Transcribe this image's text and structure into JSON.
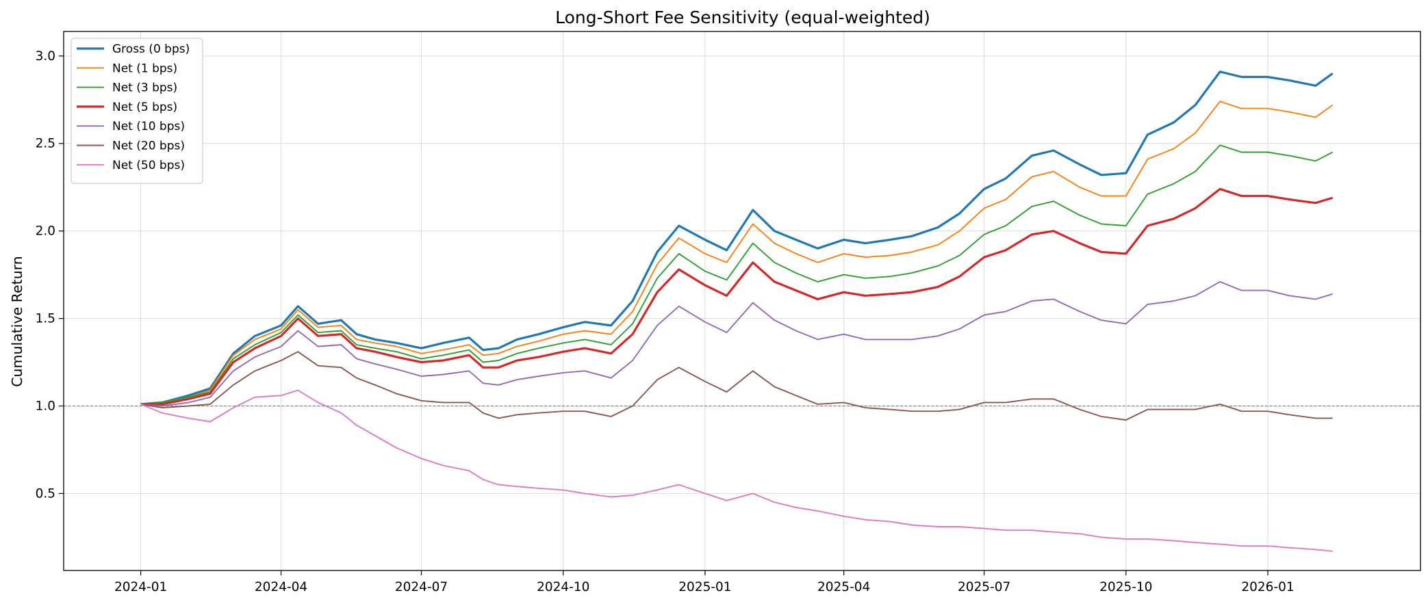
{
  "chart_data": {
    "type": "line",
    "title": "Long-Short Fee Sensitivity (equal-weighted)",
    "xlabel": "",
    "ylabel": "Cumulative Return",
    "xlim": [
      "2023-11-12",
      "2026-04-10"
    ],
    "ylim": [
      0.06,
      3.14
    ],
    "x_ticks": [
      "2024-01",
      "2024-04",
      "2024-07",
      "2024-10",
      "2025-01",
      "2025-04",
      "2025-07",
      "2025-10",
      "2026-01"
    ],
    "y_ticks": [
      0.5,
      1.0,
      1.5,
      2.0,
      2.5,
      3.0
    ],
    "grid": true,
    "reference_line": {
      "y": 1.0,
      "style": "dashed",
      "color": "#808080"
    },
    "legend": {
      "placement": "top-left"
    },
    "x": [
      "2024-01-01",
      "2024-01-15",
      "2024-02-01",
      "2024-02-15",
      "2024-03-01",
      "2024-03-15",
      "2024-04-01",
      "2024-04-12",
      "2024-04-25",
      "2024-05-10",
      "2024-05-20",
      "2024-06-01",
      "2024-06-15",
      "2024-07-01",
      "2024-07-15",
      "2024-08-01",
      "2024-08-10",
      "2024-08-20",
      "2024-09-01",
      "2024-09-15",
      "2024-10-01",
      "2024-10-15",
      "2024-11-01",
      "2024-11-15",
      "2024-12-01",
      "2024-12-15",
      "2025-01-01",
      "2025-01-15",
      "2025-02-01",
      "2025-02-15",
      "2025-03-01",
      "2025-03-15",
      "2025-04-01",
      "2025-04-15",
      "2025-05-01",
      "2025-05-15",
      "2025-06-01",
      "2025-06-15",
      "2025-07-01",
      "2025-07-15",
      "2025-08-01",
      "2025-08-15",
      "2025-09-01",
      "2025-09-15",
      "2025-10-01",
      "2025-10-15",
      "2025-11-01",
      "2025-11-15",
      "2025-12-01",
      "2025-12-15",
      "2026-01-01",
      "2026-01-15",
      "2026-02-01",
      "2026-02-12"
    ],
    "series": [
      {
        "name": "Gross (0 bps)",
        "color": "#1f77b4",
        "width": 3.2,
        "values": [
          1.01,
          1.02,
          1.06,
          1.1,
          1.3,
          1.4,
          1.46,
          1.57,
          1.47,
          1.49,
          1.41,
          1.38,
          1.36,
          1.33,
          1.36,
          1.39,
          1.32,
          1.33,
          1.38,
          1.41,
          1.45,
          1.48,
          1.46,
          1.6,
          1.88,
          2.03,
          1.95,
          1.89,
          2.12,
          2.0,
          1.95,
          1.9,
          1.95,
          1.93,
          1.95,
          1.97,
          2.02,
          2.1,
          2.24,
          2.3,
          2.43,
          2.46,
          2.38,
          2.32,
          2.33,
          2.55,
          2.62,
          2.72,
          2.91,
          2.88,
          2.88,
          2.86,
          2.83,
          2.9
        ]
      },
      {
        "name": "Net (1 bps)",
        "color": "#ff7f0e",
        "width": 1.9,
        "values": [
          1.01,
          1.02,
          1.05,
          1.09,
          1.29,
          1.38,
          1.44,
          1.55,
          1.45,
          1.46,
          1.38,
          1.36,
          1.34,
          1.3,
          1.32,
          1.35,
          1.29,
          1.3,
          1.34,
          1.37,
          1.41,
          1.43,
          1.41,
          1.54,
          1.81,
          1.96,
          1.87,
          1.82,
          2.04,
          1.93,
          1.87,
          1.82,
          1.87,
          1.85,
          1.86,
          1.88,
          1.92,
          2.0,
          2.13,
          2.18,
          2.31,
          2.34,
          2.25,
          2.2,
          2.2,
          2.41,
          2.47,
          2.56,
          2.74,
          2.7,
          2.7,
          2.68,
          2.65,
          2.72
        ]
      },
      {
        "name": "Net (3 bps)",
        "color": "#2ca02c",
        "width": 1.9,
        "values": [
          1.01,
          1.02,
          1.05,
          1.08,
          1.27,
          1.35,
          1.42,
          1.52,
          1.42,
          1.43,
          1.35,
          1.33,
          1.31,
          1.27,
          1.29,
          1.32,
          1.25,
          1.26,
          1.3,
          1.33,
          1.36,
          1.38,
          1.35,
          1.47,
          1.73,
          1.87,
          1.77,
          1.72,
          1.93,
          1.82,
          1.76,
          1.71,
          1.75,
          1.73,
          1.74,
          1.76,
          1.8,
          1.86,
          1.98,
          2.03,
          2.14,
          2.17,
          2.09,
          2.04,
          2.03,
          2.21,
          2.27,
          2.34,
          2.49,
          2.45,
          2.45,
          2.43,
          2.4,
          2.45
        ]
      },
      {
        "name": "Net (5 bps)",
        "color": "#d62728",
        "width": 3.2,
        "values": [
          1.01,
          1.01,
          1.04,
          1.07,
          1.25,
          1.33,
          1.4,
          1.5,
          1.4,
          1.41,
          1.33,
          1.31,
          1.28,
          1.25,
          1.26,
          1.29,
          1.22,
          1.22,
          1.26,
          1.28,
          1.31,
          1.33,
          1.3,
          1.41,
          1.65,
          1.78,
          1.69,
          1.63,
          1.82,
          1.71,
          1.66,
          1.61,
          1.65,
          1.63,
          1.64,
          1.65,
          1.68,
          1.74,
          1.85,
          1.89,
          1.98,
          2.0,
          1.93,
          1.88,
          1.87,
          2.03,
          2.07,
          2.13,
          2.24,
          2.2,
          2.2,
          2.18,
          2.16,
          2.19
        ]
      },
      {
        "name": "Net (10 bps)",
        "color": "#9467bd",
        "width": 1.9,
        "values": [
          1.01,
          1.0,
          1.02,
          1.05,
          1.2,
          1.28,
          1.34,
          1.43,
          1.34,
          1.35,
          1.27,
          1.24,
          1.21,
          1.17,
          1.18,
          1.2,
          1.13,
          1.12,
          1.15,
          1.17,
          1.19,
          1.2,
          1.16,
          1.26,
          1.46,
          1.57,
          1.48,
          1.42,
          1.59,
          1.49,
          1.43,
          1.38,
          1.41,
          1.38,
          1.38,
          1.38,
          1.4,
          1.44,
          1.52,
          1.54,
          1.6,
          1.61,
          1.54,
          1.49,
          1.47,
          1.58,
          1.6,
          1.63,
          1.71,
          1.66,
          1.66,
          1.63,
          1.61,
          1.64
        ]
      },
      {
        "name": "Net (20 bps)",
        "color": "#8c564b",
        "width": 1.9,
        "values": [
          1.01,
          0.99,
          1.0,
          1.01,
          1.12,
          1.2,
          1.26,
          1.31,
          1.23,
          1.22,
          1.16,
          1.12,
          1.07,
          1.03,
          1.02,
          1.02,
          0.96,
          0.93,
          0.95,
          0.96,
          0.97,
          0.97,
          0.94,
          1.0,
          1.15,
          1.22,
          1.14,
          1.08,
          1.2,
          1.11,
          1.06,
          1.01,
          1.02,
          0.99,
          0.98,
          0.97,
          0.97,
          0.98,
          1.02,
          1.02,
          1.04,
          1.04,
          0.98,
          0.94,
          0.92,
          0.98,
          0.98,
          0.98,
          1.01,
          0.97,
          0.97,
          0.95,
          0.93,
          0.93
        ]
      },
      {
        "name": "Net (50 bps)",
        "color": "#e377c2",
        "width": 1.9,
        "values": [
          1.01,
          0.96,
          0.93,
          0.91,
          0.99,
          1.05,
          1.06,
          1.09,
          1.02,
          0.96,
          0.89,
          0.83,
          0.76,
          0.7,
          0.66,
          0.63,
          0.58,
          0.55,
          0.54,
          0.53,
          0.52,
          0.5,
          0.48,
          0.49,
          0.52,
          0.55,
          0.5,
          0.46,
          0.5,
          0.45,
          0.42,
          0.4,
          0.37,
          0.35,
          0.34,
          0.32,
          0.31,
          0.31,
          0.3,
          0.29,
          0.29,
          0.28,
          0.27,
          0.25,
          0.24,
          0.24,
          0.23,
          0.22,
          0.21,
          0.2,
          0.2,
          0.19,
          0.18,
          0.17
        ]
      }
    ]
  }
}
